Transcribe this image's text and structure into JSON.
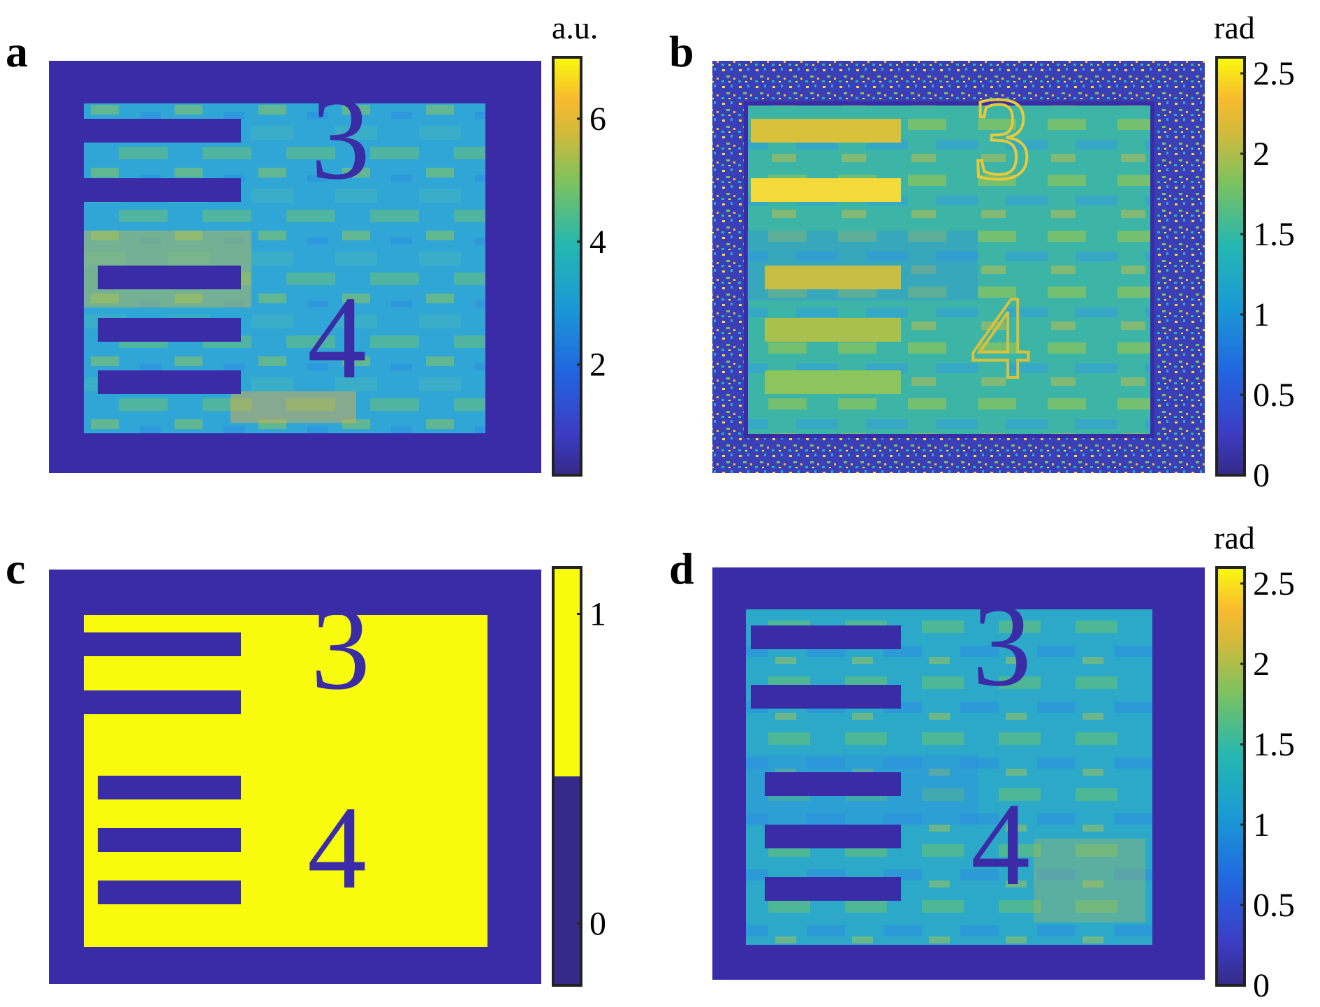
{
  "colors": {
    "bg_dark": "#3a2ca6",
    "mid_blue": "#2f8ee6",
    "cyan": "#27b3c7",
    "green": "#6fc36a",
    "orange": "#f2b03a",
    "yellow": "#f9fb0e"
  },
  "panels": [
    {
      "id": "a",
      "letter": "a",
      "unit": "a.u.",
      "colorbar": {
        "type": "continuous",
        "min": 0.2,
        "max": 7,
        "ticks": [
          {
            "value": 2,
            "label": "2"
          },
          {
            "value": 4,
            "label": "4"
          },
          {
            "value": 6,
            "label": "6"
          }
        ]
      },
      "image": {
        "content": "intensity",
        "digits": [
          "3",
          "4"
        ],
        "noisy_border": false
      }
    },
    {
      "id": "b",
      "letter": "b",
      "unit": "rad",
      "colorbar": {
        "type": "continuous",
        "min": 0,
        "max": 2.6,
        "ticks": [
          {
            "value": 0,
            "label": "0"
          },
          {
            "value": 0.5,
            "label": "0.5"
          },
          {
            "value": 1,
            "label": "1"
          },
          {
            "value": 1.5,
            "label": "1.5"
          },
          {
            "value": 2,
            "label": "2"
          },
          {
            "value": 2.5,
            "label": "2.5"
          }
        ]
      },
      "image": {
        "content": "phase",
        "digits": [
          "3",
          "4"
        ],
        "noisy_border": true
      }
    },
    {
      "id": "c",
      "letter": "c",
      "unit": "",
      "colorbar": {
        "type": "binary",
        "min": -0.2,
        "max": 1.15,
        "ticks": [
          {
            "value": 0,
            "label": "0"
          },
          {
            "value": 1,
            "label": "1"
          }
        ]
      },
      "image": {
        "content": "binary-mask",
        "digits": [
          "3",
          "4"
        ],
        "noisy_border": false
      }
    },
    {
      "id": "d",
      "letter": "d",
      "unit": "rad",
      "colorbar": {
        "type": "continuous",
        "min": 0,
        "max": 2.6,
        "ticks": [
          {
            "value": 0,
            "label": "0"
          },
          {
            "value": 0.5,
            "label": "0.5"
          },
          {
            "value": 1,
            "label": "1"
          },
          {
            "value": 1.5,
            "label": "1.5"
          },
          {
            "value": 2,
            "label": "2"
          },
          {
            "value": 2.5,
            "label": "2.5"
          }
        ]
      },
      "image": {
        "content": "masked-phase",
        "digits": [
          "3",
          "4"
        ],
        "noisy_border": false
      }
    }
  ]
}
